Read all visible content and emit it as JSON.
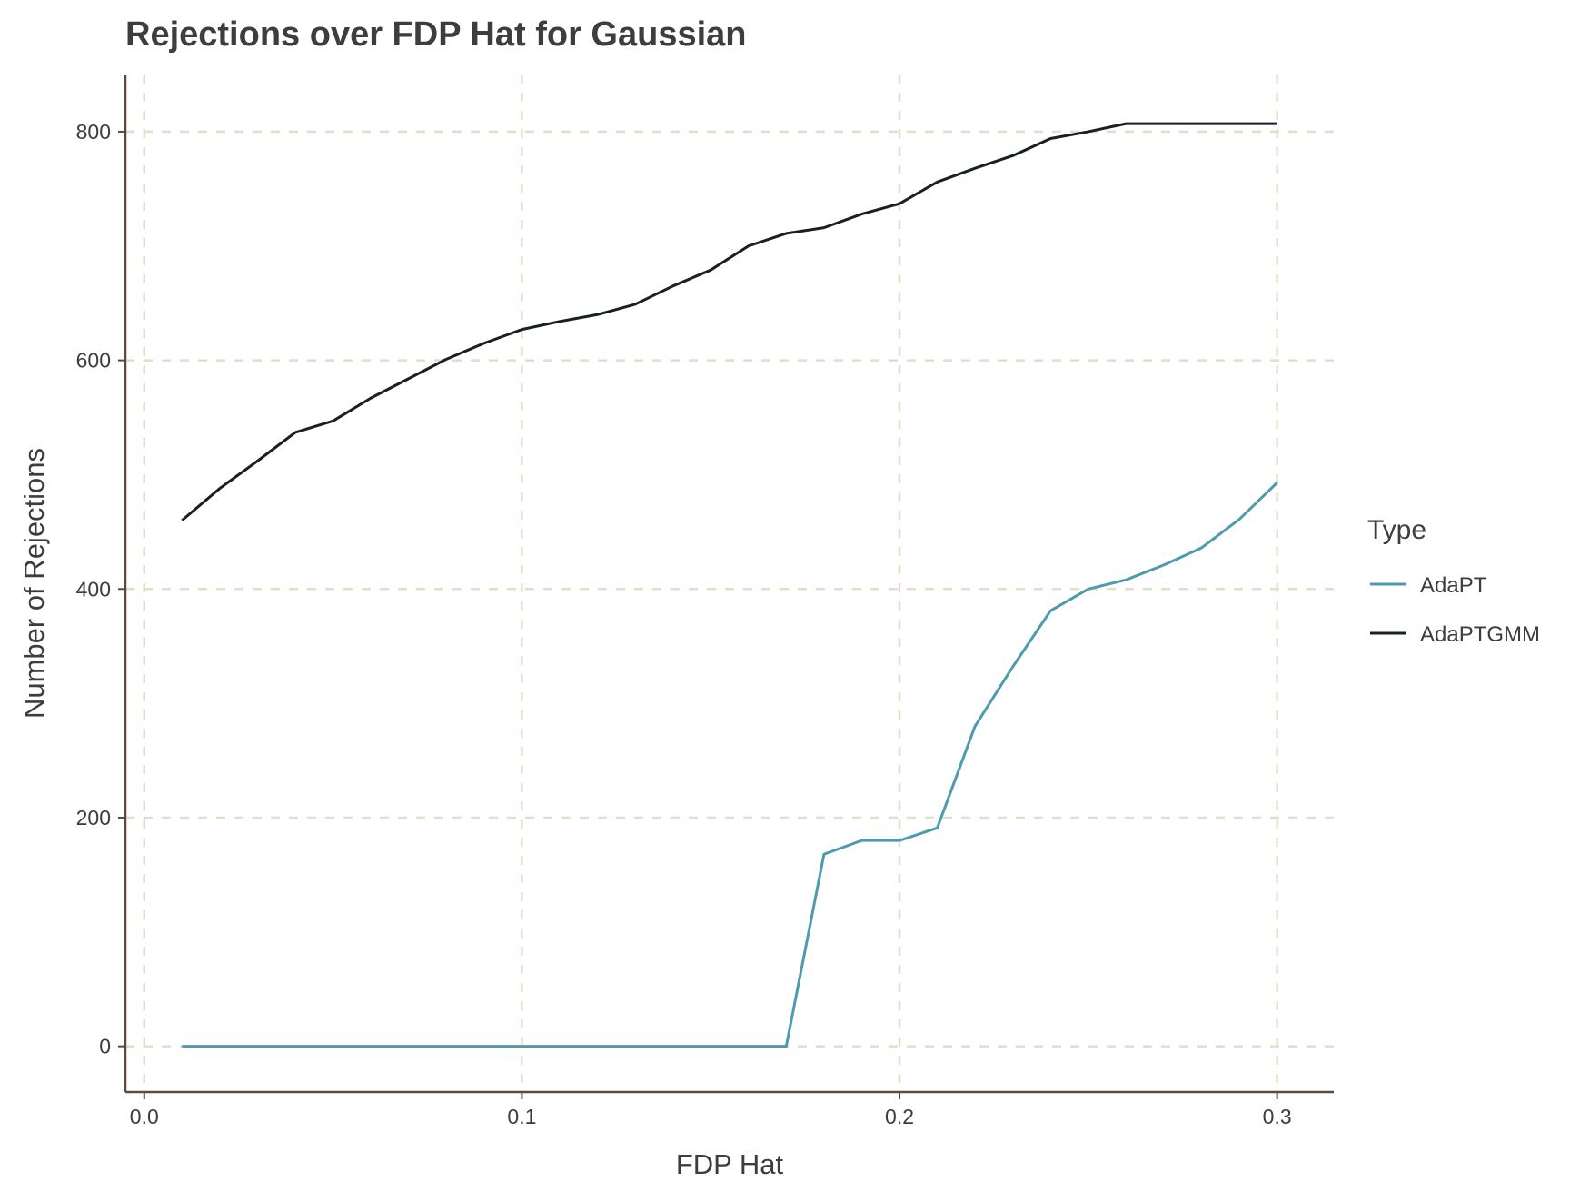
{
  "chart_data": {
    "type": "line",
    "title": "Rejections over FDP Hat for Gaussian",
    "xlabel": "FDP Hat",
    "ylabel": "Number of Rejections",
    "xlim": [
      -0.005,
      0.315
    ],
    "ylim": [
      -40,
      850
    ],
    "xticks": [
      0.0,
      0.1,
      0.2,
      0.3
    ],
    "xtick_labels": [
      "0.0",
      "0.1",
      "0.2",
      "0.3"
    ],
    "yticks": [
      0,
      200,
      400,
      600,
      800
    ],
    "ytick_labels": [
      "0",
      "200",
      "400",
      "600",
      "800"
    ],
    "grid": true,
    "legend": {
      "title": "Type",
      "position": "right"
    },
    "x": [
      0.01,
      0.02,
      0.03,
      0.04,
      0.05,
      0.06,
      0.07,
      0.08,
      0.09,
      0.1,
      0.11,
      0.12,
      0.13,
      0.14,
      0.15,
      0.16,
      0.17,
      0.18,
      0.19,
      0.2,
      0.21,
      0.22,
      0.23,
      0.24,
      0.25,
      0.26,
      0.27,
      0.28,
      0.29,
      0.3
    ],
    "series": [
      {
        "name": "AdaPT",
        "color": "#4e9aae",
        "values": [
          0,
          0,
          0,
          0,
          0,
          0,
          0,
          0,
          0,
          0,
          0,
          0,
          0,
          0,
          0,
          0,
          0,
          168,
          180,
          180,
          191,
          280,
          332,
          381,
          400,
          408,
          421,
          436,
          461,
          493
        ]
      },
      {
        "name": "AdaPTGMM",
        "color": "#1a1f24",
        "values": [
          460,
          488,
          512,
          537,
          547,
          567,
          584,
          601,
          615,
          627,
          634,
          640,
          649,
          665,
          679,
          700,
          711,
          716,
          728,
          737,
          756,
          768,
          779,
          794,
          800,
          807,
          807,
          807,
          807,
          807
        ]
      }
    ]
  }
}
